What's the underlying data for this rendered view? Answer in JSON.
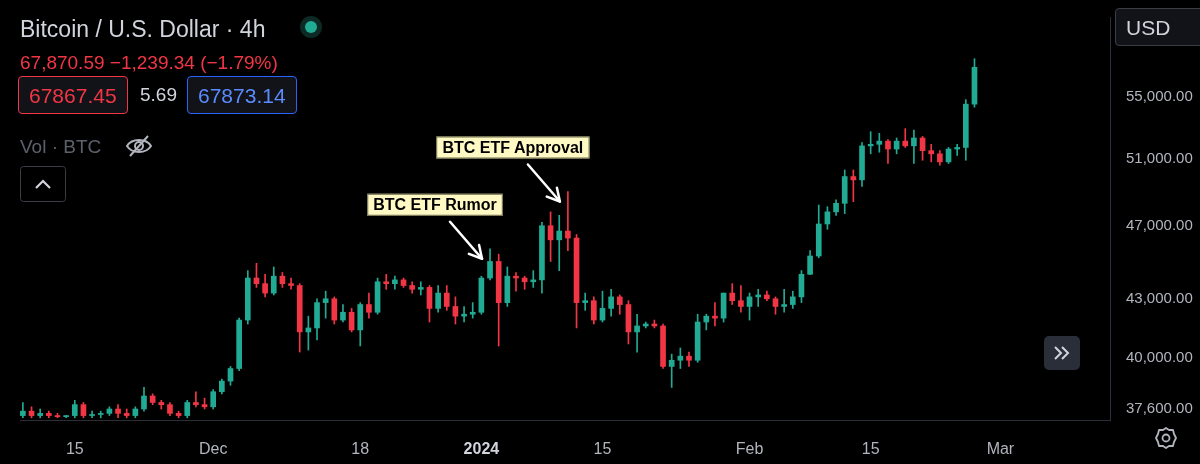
{
  "chart_data": {
    "type": "candlestick",
    "title": "Bitcoin / U.S. Dollar · 4h",
    "subtitle": "67,870.59 −1,239.34 (−1.79%)",
    "annotations": [
      "67867.45",
      "5.69",
      "67873.14",
      "Vol · BTC",
      "USD",
      {
        "text": "BTC ETF Rumor",
        "x": "2024-01-02",
        "y": 45700
      },
      {
        "text": "BTC ETF Approval",
        "x": "2024-01-11",
        "y": 49000
      }
    ],
    "log": true,
    "legend": false,
    "grid": false,
    "xlim": [
      "2023-11-08T16:00",
      "2024-03-13T16:00"
    ],
    "xticks": [
      {
        "value": "2023-11-15",
        "label": "15"
      },
      {
        "value": "2023-12-01",
        "label": "Dec"
      },
      {
        "value": "2023-12-18",
        "label": "18"
      },
      {
        "value": "2024-01-01",
        "label": "2024"
      },
      {
        "value": "2024-01-15",
        "label": "15"
      },
      {
        "value": "2024-02-01",
        "label": "Feb"
      },
      {
        "value": "2024-02-15",
        "label": "15"
      },
      {
        "value": "2024-03-01",
        "label": "Mar"
      }
    ],
    "ylim": [
      37100,
      60600
    ],
    "yticks": [
      {
        "value": 37600,
        "label": "37,600.00"
      },
      {
        "value": 40000,
        "label": "40,000.00"
      },
      {
        "value": 43000,
        "label": "43,000.00"
      },
      {
        "value": 47000,
        "label": "47,000.00"
      },
      {
        "value": 51000,
        "label": "51,000.00"
      },
      {
        "value": 55000,
        "label": "55,000.00"
      }
    ],
    "x": [
      "2023-11-09",
      "2023-11-10",
      "2023-11-11",
      "2023-11-12",
      "2023-11-13",
      "2023-11-14",
      "2023-11-15",
      "2023-11-16",
      "2023-11-17",
      "2023-11-18",
      "2023-11-19",
      "2023-11-20",
      "2023-11-21",
      "2023-11-22",
      "2023-11-23",
      "2023-11-24",
      "2023-11-25",
      "2023-11-26",
      "2023-11-27",
      "2023-11-28",
      "2023-11-29",
      "2023-11-30",
      "2023-12-01",
      "2023-12-02",
      "2023-12-03",
      "2023-12-04",
      "2023-12-05",
      "2023-12-06",
      "2023-12-07",
      "2023-12-08",
      "2023-12-09",
      "2023-12-10",
      "2023-12-11",
      "2023-12-12",
      "2023-12-13",
      "2023-12-14",
      "2023-12-15",
      "2023-12-16",
      "2023-12-17",
      "2023-12-18",
      "2023-12-19",
      "2023-12-20",
      "2023-12-21",
      "2023-12-22",
      "2023-12-23",
      "2023-12-24",
      "2023-12-25",
      "2023-12-26",
      "2023-12-27",
      "2023-12-28",
      "2023-12-29",
      "2023-12-30",
      "2023-12-31",
      "2024-01-01",
      "2024-01-02",
      "2024-01-03",
      "2024-01-04",
      "2024-01-05",
      "2024-01-06",
      "2024-01-07",
      "2024-01-08",
      "2024-01-09",
      "2024-01-10",
      "2024-01-11",
      "2024-01-12",
      "2024-01-13",
      "2024-01-14",
      "2024-01-15",
      "2024-01-16",
      "2024-01-17",
      "2024-01-18",
      "2024-01-19",
      "2024-01-20",
      "2024-01-21",
      "2024-01-22",
      "2024-01-23",
      "2024-01-24",
      "2024-01-25",
      "2024-01-26",
      "2024-01-27",
      "2024-01-28",
      "2024-01-29",
      "2024-01-30",
      "2024-01-31",
      "2024-02-01",
      "2024-02-02",
      "2024-02-03",
      "2024-02-04",
      "2024-02-05",
      "2024-02-06",
      "2024-02-07",
      "2024-02-08",
      "2024-02-09",
      "2024-02-10",
      "2024-02-11",
      "2024-02-12",
      "2024-02-13",
      "2024-02-14",
      "2024-02-15",
      "2024-02-16",
      "2024-02-17",
      "2024-02-18",
      "2024-02-19",
      "2024-02-20",
      "2024-02-21",
      "2024-02-22",
      "2024-02-23",
      "2024-02-24",
      "2024-02-25",
      "2024-02-26",
      "2024-02-27"
    ],
    "ohlc": [
      [
        37300,
        37900,
        37200,
        37500
      ],
      [
        37500,
        37700,
        37200,
        37300
      ],
      [
        37300,
        37600,
        37200,
        37400
      ],
      [
        37400,
        37500,
        37200,
        37300
      ],
      [
        37300,
        37400,
        37200,
        37250
      ],
      [
        37250,
        37300,
        37200,
        37300
      ],
      [
        37300,
        38000,
        37200,
        37800
      ],
      [
        37800,
        37900,
        37200,
        37300
      ],
      [
        37300,
        37500,
        37200,
        37350
      ],
      [
        37350,
        37500,
        37200,
        37400
      ],
      [
        37400,
        37700,
        37300,
        37600
      ],
      [
        37600,
        37800,
        37200,
        37400
      ],
      [
        37400,
        37600,
        37200,
        37300
      ],
      [
        37300,
        37700,
        37200,
        37600
      ],
      [
        37600,
        38600,
        37500,
        38200
      ],
      [
        38200,
        38300,
        37800,
        37900
      ],
      [
        37900,
        38000,
        37600,
        37800
      ],
      [
        37800,
        37900,
        37300,
        37400
      ],
      [
        37400,
        37500,
        37200,
        37300
      ],
      [
        37300,
        38000,
        37200,
        37900
      ],
      [
        37900,
        38400,
        37700,
        37800
      ],
      [
        37800,
        38100,
        37600,
        37700
      ],
      [
        37700,
        38500,
        37600,
        38400
      ],
      [
        38400,
        39000,
        38300,
        38900
      ],
      [
        38900,
        39600,
        38700,
        39500
      ],
      [
        39500,
        42000,
        39400,
        41900
      ],
      [
        41900,
        44500,
        41700,
        44100
      ],
      [
        44100,
        44900,
        43600,
        43800
      ],
      [
        43800,
        44300,
        43100,
        43300
      ],
      [
        43300,
        44700,
        43200,
        44200
      ],
      [
        44200,
        44400,
        43600,
        43800
      ],
      [
        43800,
        44100,
        43500,
        43700
      ],
      [
        43700,
        43800,
        40300,
        41300
      ],
      [
        41300,
        42100,
        40400,
        41500
      ],
      [
        41500,
        43000,
        40900,
        42800
      ],
      [
        42800,
        43400,
        42000,
        43000
      ],
      [
        43000,
        43100,
        41700,
        41900
      ],
      [
        41900,
        42700,
        41800,
        42300
      ],
      [
        42300,
        42500,
        41300,
        41400
      ],
      [
        41400,
        42800,
        40600,
        42700
      ],
      [
        42700,
        43300,
        42000,
        42300
      ],
      [
        42300,
        44100,
        42200,
        43900
      ],
      [
        43900,
        44300,
        43500,
        43800
      ],
      [
        43800,
        44200,
        43500,
        44000
      ],
      [
        44000,
        44100,
        43600,
        43700
      ],
      [
        43700,
        43900,
        43300,
        43500
      ],
      [
        43500,
        43900,
        43200,
        43600
      ],
      [
        43600,
        43700,
        41800,
        42500
      ],
      [
        42500,
        43700,
        42300,
        43300
      ],
      [
        43300,
        43700,
        42400,
        42600
      ],
      [
        42600,
        43100,
        41700,
        42100
      ],
      [
        42100,
        42600,
        41800,
        42200
      ],
      [
        42200,
        42800,
        42000,
        42300
      ],
      [
        42300,
        44200,
        42200,
        44100
      ],
      [
        44100,
        45700,
        44000,
        45000
      ],
      [
        45000,
        45400,
        40600,
        42800
      ],
      [
        42800,
        44700,
        42600,
        44200
      ],
      [
        44200,
        44400,
        43400,
        44100
      ],
      [
        44100,
        44200,
        43500,
        43900
      ],
      [
        43900,
        44500,
        43600,
        44000
      ],
      [
        44000,
        47200,
        43300,
        47000
      ],
      [
        47000,
        47800,
        45000,
        46200
      ],
      [
        46200,
        47600,
        44500,
        46700
      ],
      [
        46700,
        49000,
        45600,
        46300
      ],
      [
        46300,
        46500,
        41500,
        42800
      ],
      [
        42800,
        43300,
        42400,
        42900
      ],
      [
        42900,
        43100,
        41700,
        41900
      ],
      [
        41900,
        43400,
        41800,
        42500
      ],
      [
        42500,
        43500,
        42100,
        43100
      ],
      [
        43100,
        43200,
        42200,
        42700
      ],
      [
        42700,
        42900,
        40700,
        41300
      ],
      [
        41300,
        42200,
        40300,
        41600
      ],
      [
        41600,
        41800,
        41500,
        41700
      ],
      [
        41700,
        41900,
        41500,
        41600
      ],
      [
        41600,
        41700,
        39500,
        39600
      ],
      [
        39600,
        40200,
        38600,
        39900
      ],
      [
        39900,
        40500,
        39500,
        40100
      ],
      [
        40100,
        40300,
        39600,
        39900
      ],
      [
        39900,
        42200,
        39800,
        41800
      ],
      [
        41800,
        42200,
        41400,
        42100
      ],
      [
        42100,
        42800,
        41600,
        42000
      ],
      [
        42000,
        43300,
        41800,
        43300
      ],
      [
        43300,
        43800,
        42700,
        42900
      ],
      [
        42900,
        43700,
        42300,
        42600
      ],
      [
        42600,
        43300,
        41900,
        43100
      ],
      [
        43100,
        43500,
        42600,
        43200
      ],
      [
        43200,
        43400,
        42900,
        43000
      ],
      [
        43000,
        43100,
        42200,
        42600
      ],
      [
        42600,
        43500,
        42300,
        42700
      ],
      [
        42700,
        43400,
        42500,
        43100
      ],
      [
        43100,
        44500,
        42800,
        44300
      ],
      [
        44300,
        45600,
        44300,
        45300
      ],
      [
        45300,
        48200,
        45200,
        47100
      ],
      [
        47100,
        48100,
        46800,
        47800
      ],
      [
        47800,
        48500,
        47600,
        48300
      ],
      [
        48300,
        50300,
        47700,
        49900
      ],
      [
        49900,
        50300,
        48400,
        49700
      ],
      [
        49700,
        52000,
        49300,
        51800
      ],
      [
        51800,
        52700,
        51300,
        51900
      ],
      [
        51900,
        52600,
        51400,
        52100
      ],
      [
        52100,
        52200,
        50700,
        51600
      ],
      [
        51600,
        52300,
        51300,
        52100
      ],
      [
        52100,
        52900,
        51700,
        51800
      ],
      [
        51800,
        52800,
        50700,
        52300
      ],
      [
        52300,
        52400,
        50900,
        51500
      ],
      [
        51500,
        51900,
        50800,
        51300
      ],
      [
        51300,
        51500,
        50600,
        50800
      ],
      [
        50800,
        51700,
        50700,
        51600
      ],
      [
        51600,
        51900,
        51200,
        51700
      ],
      [
        51700,
        54800,
        50900,
        54500
      ],
      [
        54500,
        57600,
        54300,
        57000
      ]
    ],
    "colors": [
      "#22ab94",
      "#f23645",
      "#22ab94",
      "#f23645",
      "#f23645",
      "#22ab94",
      "#22ab94",
      "#f23645",
      "#22ab94",
      "#22ab94",
      "#22ab94",
      "#f23645",
      "#f23645",
      "#22ab94",
      "#22ab94",
      "#f23645",
      "#f23645",
      "#f23645",
      "#f23645",
      "#22ab94",
      "#f23645",
      "#f23645",
      "#22ab94",
      "#22ab94",
      "#22ab94",
      "#22ab94",
      "#22ab94",
      "#f23645",
      "#f23645",
      "#22ab94",
      "#f23645",
      "#f23645",
      "#f23645",
      "#22ab94",
      "#22ab94",
      "#22ab94",
      "#f23645",
      "#22ab94",
      "#f23645",
      "#22ab94",
      "#f23645",
      "#22ab94",
      "#f23645",
      "#22ab94",
      "#f23645",
      "#f23645",
      "#22ab94",
      "#f23645",
      "#22ab94",
      "#f23645",
      "#f23645",
      "#22ab94",
      "#22ab94",
      "#22ab94",
      "#22ab94",
      "#f23645",
      "#22ab94",
      "#f23645",
      "#f23645",
      "#22ab94",
      "#22ab94",
      "#f23645",
      "#22ab94",
      "#f23645",
      "#f23645",
      "#22ab94",
      "#f23645",
      "#22ab94",
      "#22ab94",
      "#f23645",
      "#f23645",
      "#22ab94",
      "#22ab94",
      "#f23645",
      "#f23645",
      "#22ab94",
      "#22ab94",
      "#f23645",
      "#22ab94",
      "#22ab94",
      "#f23645",
      "#22ab94",
      "#f23645",
      "#f23645",
      "#22ab94",
      "#22ab94",
      "#f23645",
      "#f23645",
      "#22ab94",
      "#22ab94",
      "#22ab94",
      "#22ab94",
      "#22ab94",
      "#22ab94",
      "#22ab94",
      "#22ab94",
      "#f23645",
      "#22ab94",
      "#22ab94",
      "#22ab94",
      "#f23645",
      "#22ab94",
      "#f23645",
      "#22ab94",
      "#f23645",
      "#f23645",
      "#f23645",
      "#22ab94",
      "#22ab94",
      "#22ab94",
      "#22ab94"
    ]
  }
}
